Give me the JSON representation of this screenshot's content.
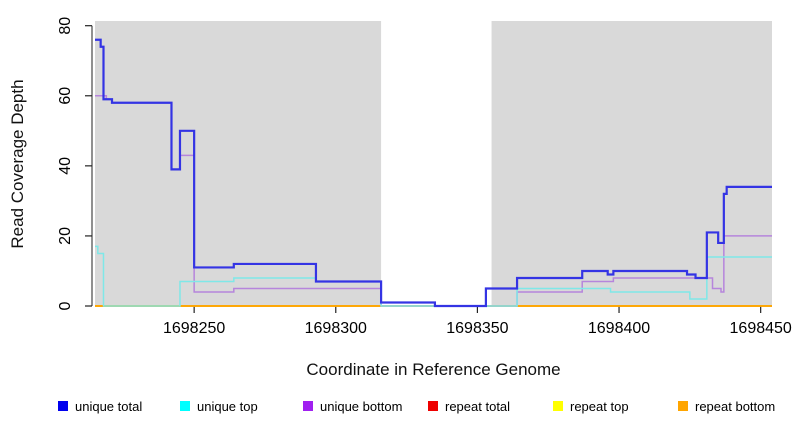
{
  "figure": {
    "background": "#ffffff",
    "panel_background": "#d9d9d9"
  },
  "chart_data": {
    "type": "line",
    "subtype": "step-coverage-plot",
    "title": "",
    "xlabel": "Coordinate in Reference Genome",
    "ylabel": "Read Coverage Depth",
    "xlim": [
      1698215,
      1698454
    ],
    "ylim": [
      0,
      80
    ],
    "x_ticks": [
      1698250,
      1698300,
      1698350,
      1698400,
      1698450
    ],
    "y_ticks": [
      0,
      20,
      40,
      60,
      80
    ],
    "grid": false,
    "panel_background": "#d9d9d9",
    "masked_region": {
      "x_start": 1698316,
      "x_end": 1698355,
      "color": "#ffffff"
    },
    "series": [
      {
        "name": "repeat total",
        "line_color": "#dd0000",
        "width": 1.4,
        "steps": [
          [
            1698215,
            0
          ]
        ]
      },
      {
        "name": "repeat top",
        "line_color": "#ffff00",
        "width": 1.4,
        "steps": [
          [
            1698215,
            0
          ]
        ]
      },
      {
        "name": "repeat bottom",
        "line_color": "#ffa500",
        "width": 1.7,
        "steps": [
          [
            1698215,
            0
          ]
        ]
      },
      {
        "name": "unique bottom",
        "line_color": "#b685dc",
        "width": 1.5,
        "steps": [
          [
            1698215,
            60
          ],
          [
            1698219,
            59
          ],
          [
            1698221,
            58
          ],
          [
            1698242,
            39
          ],
          [
            1698245,
            43
          ],
          [
            1698250,
            4
          ],
          [
            1698264,
            5
          ],
          [
            1698316,
            0
          ],
          [
            1698364,
            4
          ],
          [
            1698387,
            7
          ],
          [
            1698398,
            8
          ],
          [
            1698433,
            5
          ],
          [
            1698436,
            4
          ],
          [
            1698437,
            20
          ]
        ]
      },
      {
        "name": "unique top",
        "line_color": "#7fe8e8",
        "width": 1.5,
        "steps": [
          [
            1698215,
            17
          ],
          [
            1698216,
            15
          ],
          [
            1698218,
            0
          ],
          [
            1698245,
            7
          ],
          [
            1698264,
            8
          ],
          [
            1698293,
            7
          ],
          [
            1698316,
            0
          ],
          [
            1698364,
            5
          ],
          [
            1698397,
            4
          ],
          [
            1698425,
            2
          ],
          [
            1698431,
            14
          ]
        ]
      },
      {
        "name": "unique total",
        "line_color": "#3434e4",
        "width": 2.2,
        "steps": [
          [
            1698215,
            76
          ],
          [
            1698217,
            74
          ],
          [
            1698218,
            59
          ],
          [
            1698221,
            58
          ],
          [
            1698242,
            39
          ],
          [
            1698245,
            50
          ],
          [
            1698250,
            11
          ],
          [
            1698264,
            12
          ],
          [
            1698293,
            7
          ],
          [
            1698316,
            1
          ],
          [
            1698335,
            0
          ],
          [
            1698353,
            5
          ],
          [
            1698364,
            8
          ],
          [
            1698387,
            10
          ],
          [
            1698396,
            9
          ],
          [
            1698398,
            10
          ],
          [
            1698424,
            9
          ],
          [
            1698427,
            8
          ],
          [
            1698431,
            21
          ],
          [
            1698435,
            18
          ],
          [
            1698437,
            32
          ],
          [
            1698438,
            34
          ]
        ]
      }
    ],
    "legend": [
      {
        "label": "unique total",
        "color": "#0000ee"
      },
      {
        "label": "unique top",
        "color": "#00ffff"
      },
      {
        "label": "unique bottom",
        "color": "#a020f0"
      },
      {
        "label": "repeat total",
        "color": "#ee0000"
      },
      {
        "label": "repeat top",
        "color": "#ffff00"
      },
      {
        "label": "repeat bottom",
        "color": "#ffa500"
      }
    ],
    "legend_position": "bottom"
  }
}
